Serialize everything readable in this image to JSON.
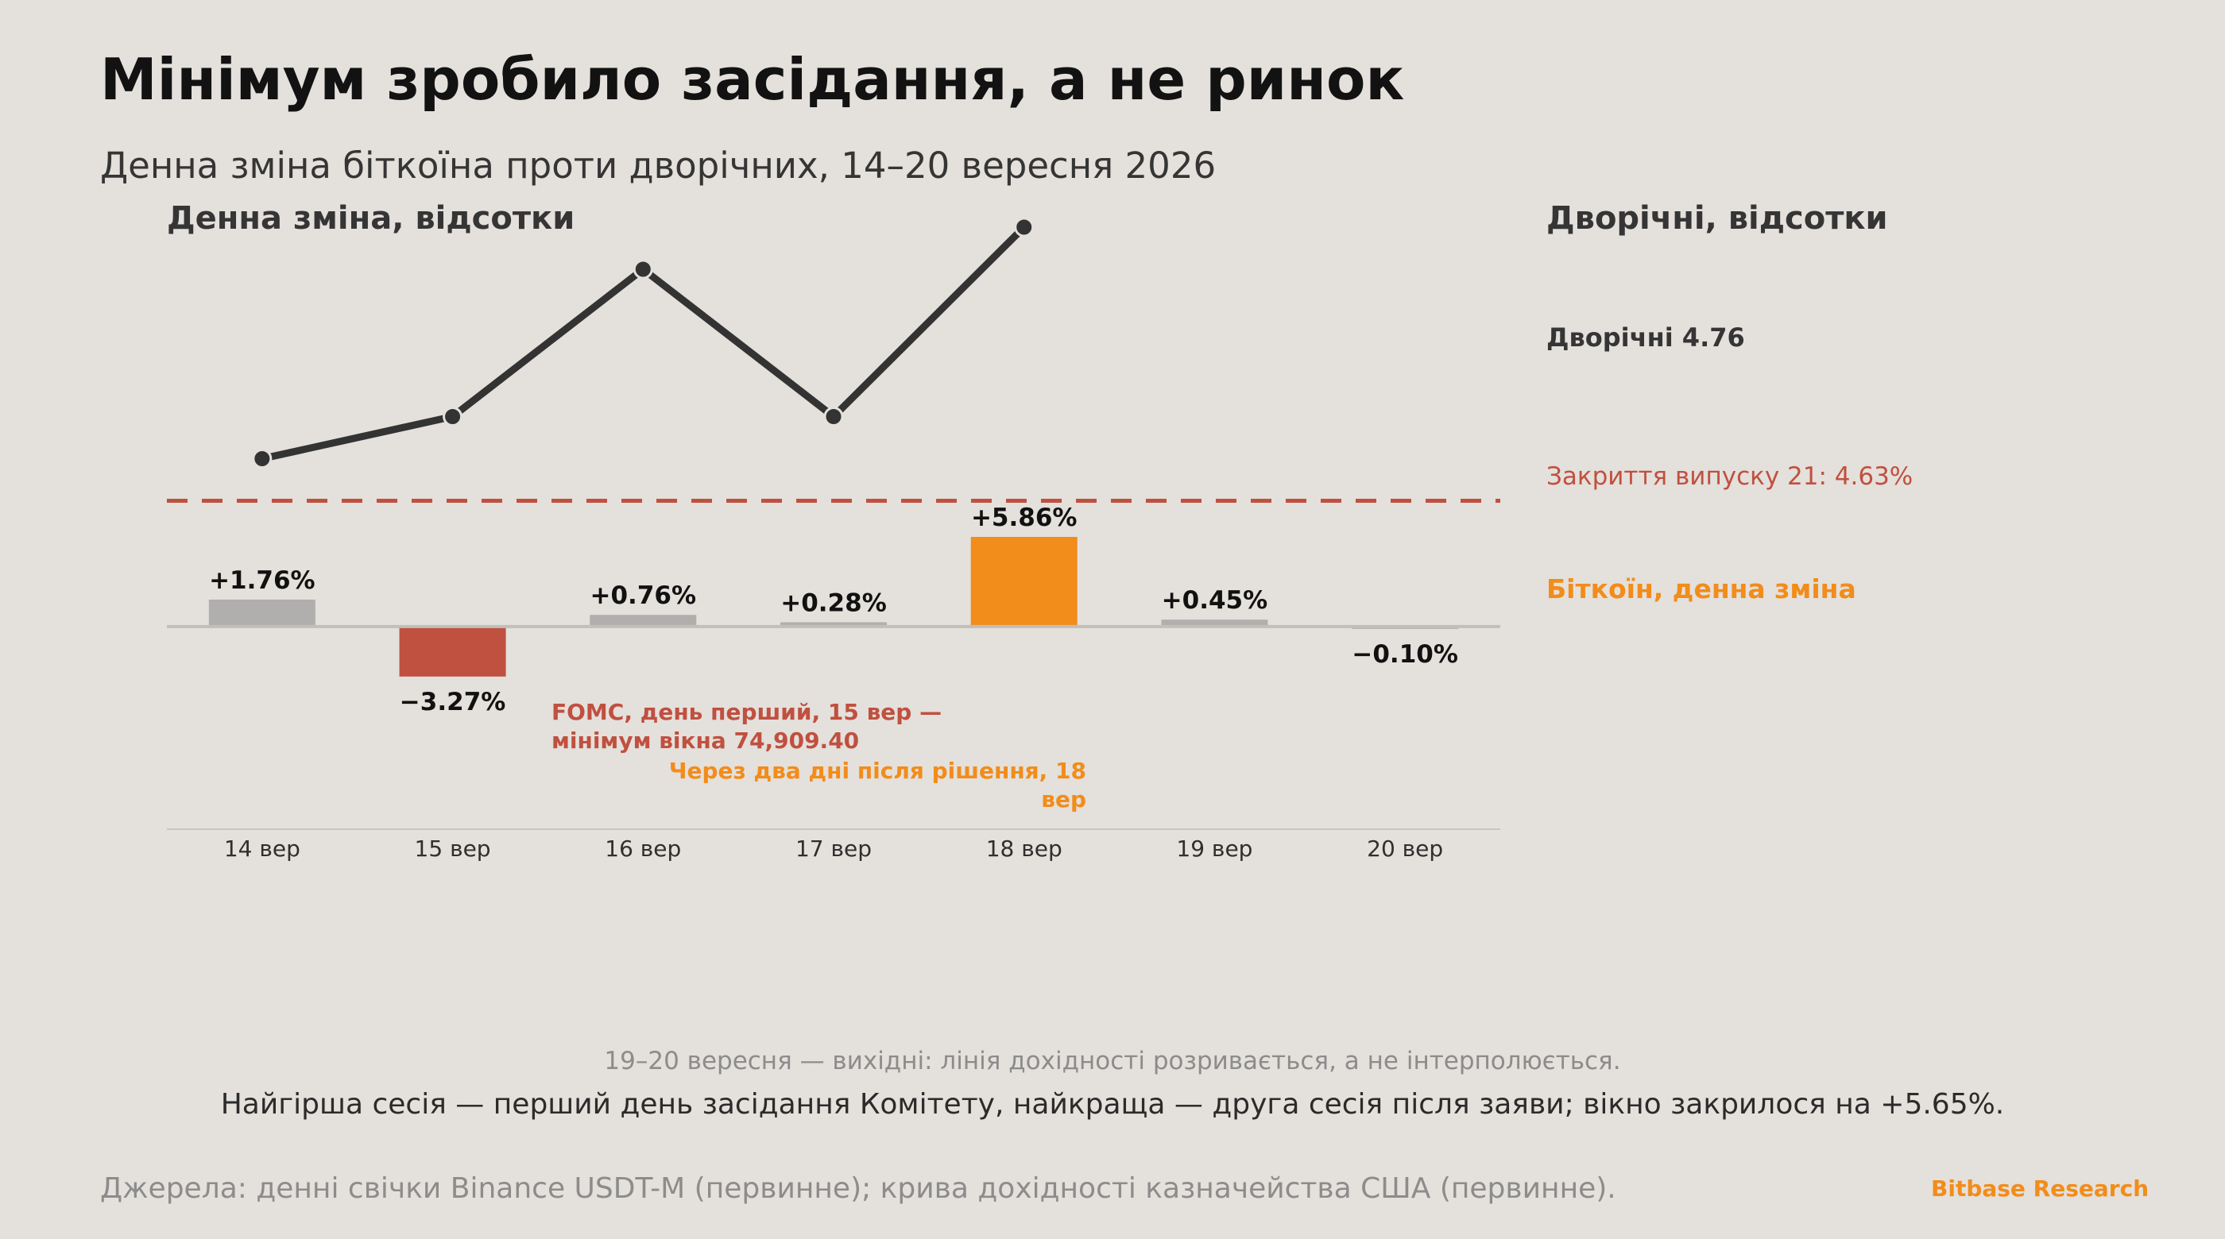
{
  "header": {
    "title": "Мінімум зробило засідання, а не ринок",
    "subtitle": "Денна зміна біткоїна проти дворічних, 14–20 вересня 2026"
  },
  "colors": {
    "background": "#e4e0db",
    "bar_neutral": "#b0afae",
    "bar_negative": "#c05040",
    "bar_highlight": "#f28c1a",
    "yield_line": "#333333",
    "threshold_line": "#c05040"
  },
  "labels": {
    "left_axis_title": "Денна зміна, відсотки",
    "right_axis_title": "Дворічні, відсотки",
    "yield_end_label": "Дворічні 4.76",
    "threshold_label": "Закриття випуску 21: 4.63%",
    "btc_series_label": "Біткоїн, денна зміна"
  },
  "chart_data": {
    "type": "bar",
    "categories": [
      "14 вер",
      "15 вер",
      "16 вер",
      "17 вер",
      "18 вер",
      "19 вер",
      "20 вер"
    ],
    "series": [
      {
        "name": "Біткоїн, денна зміна",
        "type": "bar",
        "values": [
          1.76,
          -3.27,
          0.76,
          0.28,
          5.86,
          0.45,
          -0.1
        ],
        "value_labels": [
          "+1.76%",
          "−3.27%",
          "+0.76%",
          "+0.28%",
          "+5.86%",
          "+0.45%",
          "−0.10%"
        ],
        "bar_colors": [
          "#b0afae",
          "#c05040",
          "#b0afae",
          "#b0afae",
          "#f28c1a",
          "#b0afae",
          "#b0afae"
        ]
      },
      {
        "name": "Дворічні",
        "type": "line",
        "values": [
          4.65,
          4.67,
          4.74,
          4.67,
          4.76,
          null,
          null
        ]
      }
    ],
    "left_axis": {
      "title": "Денна зміна, відсотки",
      "range": [
        -13.25,
        5.86
      ]
    },
    "right_axis": {
      "title": "Дворічні, відсотки",
      "range": [
        4.4,
        4.8
      ]
    },
    "threshold": {
      "value": 4.63,
      "label": "Закриття випуску 21: 4.63%"
    },
    "annotations": [
      {
        "category": "15 вер",
        "color": "#c05040",
        "lines": [
          "FOMC, день перший, 15 вер —",
          "мінімум вікна 74,909.40"
        ]
      },
      {
        "category": "18 вер",
        "color": "#f28c1a",
        "lines": [
          "Через два дні після рішення, 18",
          "вер"
        ]
      }
    ],
    "grid": false,
    "legend": "right"
  },
  "footer": {
    "weekend_note": "19–20 вересня — вихідні: лінія дохідності розривається, а не інтерполюється.",
    "summary": "Найгірша сесія — перший день засідання Комітету, найкраща — друга сесія після заяви; вікно закрилося на +5.65%.",
    "sources": "Джерела: денні свічки Binance USDT-M (первинне); крива дохідності казначейства США (первинне).",
    "brand": "Bitbase Research"
  }
}
